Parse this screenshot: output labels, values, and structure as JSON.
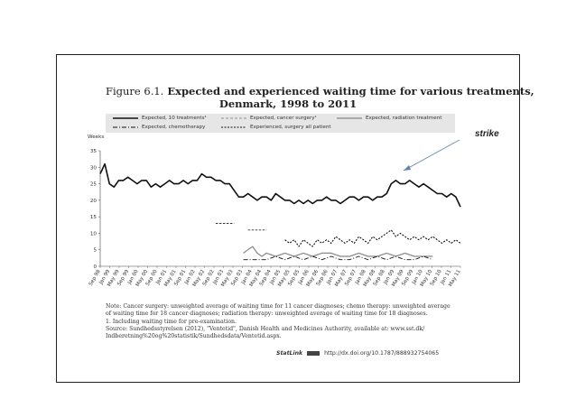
{
  "figure": {
    "number": "Figure 6.1.",
    "title_line1": "Expected and experienced waiting time for various treatments,",
    "title_line2": "Denmark, 1998 to 2011"
  },
  "legend": {
    "items": [
      {
        "label": "Expected, 10 treatments¹",
        "style": "solid-thick"
      },
      {
        "label": "Expected, cancer surgery¹",
        "style": "dashed-thin"
      },
      {
        "label": "Expected, radiation treatment",
        "style": "solid-gray"
      },
      {
        "label": "Expected, chemotherapy",
        "style": "dash-dot"
      },
      {
        "label": "Experienced, surgery all patient",
        "style": "dotted-dashed"
      }
    ]
  },
  "annotation": {
    "text": "strike"
  },
  "notes": {
    "note_line1": "Note: Cancer surgery: unweighted average of waiting time for 11 cancer diagnoses; chemo therapy: unweighted average",
    "note_line2": "of waiting time for 18 cancer diagnoses; radiation therapy: unweighted average of waiting time for 18 diagnoses.",
    "footnote": "1.  Including waiting time for pre-examination.",
    "source_line1": "Source: Sundhedsstyrelsen (2012), \"Ventetid\", Danish Health and Medicines Authority, available at: www.sst.dk/",
    "source_line2": "Indberetning%20og%20statistik/Sundhedsdata/Ventetid.aspx.",
    "statlink_label": "StatLink",
    "statlink_url": "http://dx.doi.org/10.1787/888932754065"
  },
  "chart_data": {
    "type": "line",
    "title": "Expected and experienced waiting time for various treatments, Denmark, 1998 to 2011",
    "ylabel": "Weeks",
    "ylim": [
      0,
      35
    ],
    "yticks": [
      0,
      5,
      10,
      15,
      20,
      25,
      30,
      35
    ],
    "xlabel": "",
    "x_tick_labels": [
      "Sep 98",
      "Jan 99",
      "May 99",
      "Sep 99",
      "Jan 00",
      "May 00",
      "Sep 00",
      "Jan 01",
      "May 01",
      "Sep 01",
      "Jan 02",
      "May 02",
      "Sep 02",
      "Jan 03",
      "May 03",
      "Sep 03",
      "Jan 04",
      "May 04",
      "Sep 04",
      "Jan 05",
      "May 05",
      "Sep 05",
      "Jan 06",
      "May 06",
      "Sep 06",
      "Jan 07",
      "May 07",
      "Sep 07",
      "Jan 08",
      "May 08",
      "Sep 08",
      "Jan 09",
      "May 09",
      "Sep 09",
      "Jan 10",
      "May 10",
      "Sep 10",
      "Jan 11",
      "May 11"
    ],
    "grid": false,
    "legend_position": "top",
    "series": [
      {
        "name": "Expected, 10 treatments",
        "x": [
          0,
          1,
          2,
          3,
          4,
          5,
          6,
          7,
          8,
          9,
          10,
          11,
          12,
          13,
          14,
          15,
          16,
          17,
          18,
          19,
          20,
          21,
          22,
          23,
          24,
          25,
          26,
          27,
          28,
          29,
          30,
          31,
          32,
          33,
          34,
          35,
          36,
          37,
          38,
          39,
          40,
          41,
          42,
          43,
          44,
          45,
          46,
          47,
          48,
          49,
          50,
          51,
          52,
          53,
          54,
          55,
          56,
          57,
          58,
          59,
          60,
          61,
          62,
          63,
          64,
          65,
          66,
          67,
          68,
          69,
          70,
          71,
          72,
          73,
          74,
          75,
          76,
          77,
          78
        ],
        "values": [
          28,
          31,
          25,
          24,
          26,
          26,
          27,
          26,
          25,
          26,
          26,
          24,
          25,
          24,
          25,
          26,
          25,
          25,
          26,
          25,
          26,
          26,
          28,
          27,
          27,
          26,
          26,
          25,
          25,
          23,
          21,
          21,
          22,
          21,
          20,
          21,
          21,
          20,
          22,
          21,
          20,
          20,
          19,
          20,
          19,
          20,
          19,
          20,
          20,
          21,
          20,
          20,
          19,
          20,
          21,
          21,
          20,
          21,
          21,
          20,
          21,
          21,
          22,
          25,
          26,
          25,
          25,
          26,
          25,
          24,
          25,
          24,
          23,
          22,
          22,
          21,
          22,
          21,
          18
        ]
      },
      {
        "name": "Expected, cancer surgery",
        "segments": [
          {
            "x": [
              25,
              26,
              27,
              28,
              29
            ],
            "values": [
              13,
              13,
              13,
              13,
              13
            ]
          },
          {
            "x": [
              32,
              33,
              34,
              35,
              36
            ],
            "values": [
              11,
              11,
              11,
              11,
              11
            ]
          }
        ]
      },
      {
        "name": "Expected, radiation treatment",
        "x": [
          31,
          32,
          33,
          34,
          35,
          36,
          38,
          40,
          42,
          44,
          46,
          48,
          50,
          52,
          54,
          56,
          58,
          60,
          62,
          64,
          66,
          68,
          70,
          72
        ],
        "values": [
          4,
          5,
          6,
          4,
          3,
          4,
          3,
          4,
          3,
          4,
          3,
          4,
          4,
          3,
          3,
          4,
          3,
          3,
          4,
          3,
          4,
          3,
          3,
          3
        ]
      },
      {
        "name": "Expected, chemotherapy",
        "x": [
          31,
          34,
          36,
          38,
          40,
          42,
          44,
          46,
          48,
          50,
          52,
          54,
          56,
          58,
          60,
          62,
          64,
          66,
          68,
          70,
          72
        ],
        "values": [
          2,
          2,
          2,
          3,
          2,
          3,
          2,
          3,
          2,
          3,
          2,
          2,
          3,
          2,
          3,
          2,
          3,
          2,
          2,
          3,
          2
        ]
      },
      {
        "name": "Experienced, surgery all patient",
        "x": [
          40,
          41,
          42,
          43,
          44,
          45,
          46,
          47,
          48,
          49,
          50,
          51,
          52,
          53,
          54,
          55,
          56,
          57,
          58,
          59,
          60,
          61,
          62,
          63,
          64,
          65,
          66,
          67,
          68,
          69,
          70,
          71,
          72,
          73,
          74,
          75,
          76,
          77,
          78
        ],
        "values": [
          8,
          7,
          8,
          6,
          8,
          7,
          6,
          8,
          7,
          8,
          7,
          9,
          8,
          7,
          8,
          7,
          9,
          8,
          7,
          9,
          8,
          9,
          10,
          11,
          9,
          10,
          9,
          8,
          9,
          8,
          9,
          8,
          9,
          8,
          7,
          8,
          7,
          8,
          7
        ]
      }
    ]
  }
}
